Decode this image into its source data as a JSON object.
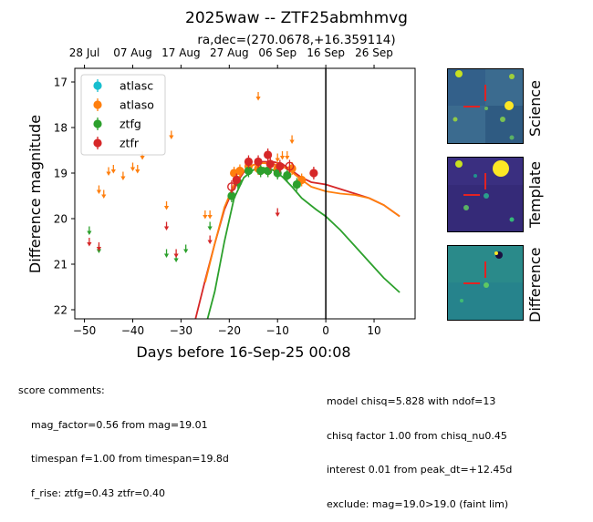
{
  "title": "2025waw -- ZTF25abmhmvg",
  "subtitle": "ra,dec=(270.0678,+16.359114)",
  "top_axis_ticks": [
    "28 Jul",
    "07 Aug",
    "17 Aug",
    "27 Aug",
    "06 Sep",
    "16 Sep",
    "26 Sep"
  ],
  "colors": {
    "atlasc": "#17becf",
    "atlaso": "#ff7f0e",
    "ztfg": "#2ca02c",
    "ztfr": "#d62728"
  },
  "chart_data": {
    "type": "scatter",
    "xlabel": "Days before 16-Sep-25 00:08",
    "ylabel": "Difference magnitude",
    "xlim": [
      -52,
      18.5
    ],
    "ylim": [
      22.2,
      16.7
    ],
    "y_inverted": true,
    "x_ticks": [
      -50,
      -40,
      -30,
      -20,
      -10,
      0,
      10
    ],
    "y_ticks": [
      17,
      18,
      19,
      20,
      21,
      22
    ],
    "top_ticks_days": [
      -50,
      -40,
      -30,
      -20,
      -10,
      0,
      10
    ],
    "vline_x": 0,
    "legend": {
      "placement": "top-left",
      "entries": [
        "atlasc",
        "atlaso",
        "ztfg",
        "ztfr"
      ]
    },
    "series": [
      {
        "name": "atlasc",
        "detections": [],
        "upper_limits": []
      },
      {
        "name": "atlaso",
        "detections": [
          [
            -19,
            19.0
          ],
          [
            -17.8,
            18.95
          ],
          [
            -16,
            18.85
          ],
          [
            -14,
            18.9
          ],
          [
            -12,
            18.95
          ],
          [
            -10,
            18.9
          ],
          [
            -7,
            18.9
          ],
          [
            -5,
            19.15
          ]
        ],
        "upper_limits": [
          [
            -47,
            19.35
          ],
          [
            -46,
            19.45
          ],
          [
            -45,
            18.95
          ],
          [
            -44,
            18.9
          ],
          [
            -42,
            19.05
          ],
          [
            -40,
            18.85
          ],
          [
            -39,
            18.9
          ],
          [
            -38,
            18.6
          ],
          [
            -32,
            18.15
          ],
          [
            -33,
            19.7
          ],
          [
            -25,
            19.9
          ],
          [
            -24,
            19.9
          ],
          [
            -14,
            17.3
          ],
          [
            -10,
            18.65
          ],
          [
            -9,
            18.6
          ],
          [
            -8,
            18.6
          ],
          [
            -7,
            18.25
          ]
        ]
      },
      {
        "name": "ztfg",
        "detections": [
          [
            -19.5,
            19.5
          ],
          [
            -18.2,
            19.2
          ],
          [
            -16,
            18.95
          ],
          [
            -13.5,
            18.95
          ],
          [
            -12,
            18.95
          ],
          [
            -10,
            19.0
          ],
          [
            -8,
            19.05
          ],
          [
            -6,
            19.25
          ]
        ],
        "upper_limits": [
          [
            -49,
            20.25
          ],
          [
            -47,
            20.65
          ],
          [
            -33,
            20.75
          ],
          [
            -31,
            20.85
          ],
          [
            -29,
            20.65
          ],
          [
            -24,
            20.15
          ]
        ]
      },
      {
        "name": "ztfr",
        "detections": [
          [
            -18.5,
            19.15
          ],
          [
            -16,
            18.75
          ],
          [
            -14,
            18.75
          ],
          [
            -12,
            18.6
          ],
          [
            -11.5,
            18.8
          ],
          [
            -9.5,
            18.85
          ],
          [
            -2.5,
            19.0
          ]
        ],
        "upper_limits": [
          [
            -49,
            20.5
          ],
          [
            -47,
            20.6
          ],
          [
            -33,
            20.15
          ],
          [
            -31,
            20.75
          ],
          [
            -24,
            20.45
          ],
          [
            -10,
            19.85
          ]
        ],
        "open_points": [
          [
            -19.5,
            19.3
          ],
          [
            -7.5,
            18.85
          ]
        ]
      }
    ],
    "model_curves": [
      {
        "name": "ztfr",
        "points": [
          [
            -27,
            22.2
          ],
          [
            -25,
            21.35
          ],
          [
            -23,
            20.55
          ],
          [
            -21,
            19.8
          ],
          [
            -19,
            19.3
          ],
          [
            -17,
            18.98
          ],
          [
            -15,
            18.82
          ],
          [
            -13,
            18.75
          ],
          [
            -11,
            18.75
          ],
          [
            -9,
            18.8
          ],
          [
            -7,
            18.95
          ],
          [
            -5,
            19.1
          ],
          [
            -3,
            19.2
          ],
          [
            0,
            19.25
          ],
          [
            3,
            19.35
          ],
          [
            6,
            19.45
          ],
          [
            9,
            19.55
          ],
          [
            12,
            19.7
          ],
          [
            15.3,
            19.95
          ]
        ]
      },
      {
        "name": "atlaso",
        "points": [
          [
            -25,
            21.4
          ],
          [
            -23,
            20.55
          ],
          [
            -21,
            19.75
          ],
          [
            -19,
            19.25
          ],
          [
            -17,
            18.95
          ],
          [
            -15,
            18.82
          ],
          [
            -13,
            18.78
          ],
          [
            -11,
            18.8
          ],
          [
            -9,
            18.85
          ],
          [
            -7,
            18.98
          ],
          [
            -5,
            19.15
          ],
          [
            -3,
            19.3
          ],
          [
            0,
            19.4
          ],
          [
            3,
            19.45
          ],
          [
            6,
            19.48
          ],
          [
            9,
            19.55
          ],
          [
            12,
            19.7
          ],
          [
            15.3,
            19.95
          ]
        ]
      },
      {
        "name": "ztfg",
        "points": [
          [
            -24.5,
            22.2
          ],
          [
            -23,
            21.6
          ],
          [
            -21,
            20.5
          ],
          [
            -19,
            19.55
          ],
          [
            -17,
            19.1
          ],
          [
            -15,
            18.93
          ],
          [
            -13,
            18.88
          ],
          [
            -11,
            18.93
          ],
          [
            -9,
            19.08
          ],
          [
            -7,
            19.3
          ],
          [
            -5,
            19.55
          ],
          [
            -2,
            19.8
          ],
          [
            0,
            19.95
          ],
          [
            3,
            20.25
          ],
          [
            6,
            20.6
          ],
          [
            9,
            20.95
          ],
          [
            12,
            21.3
          ],
          [
            15.3,
            21.62
          ]
        ]
      }
    ]
  },
  "thumbnails": {
    "science": "Science",
    "template": "Template",
    "difference": "Difference"
  },
  "score_comments": {
    "header": "score comments:",
    "lines": [
      "mag_factor=0.56 from mag=19.01",
      "timespan f=1.00 from timespan=19.8d",
      "f_rise: ztfg=0.43 ztfr=0.40"
    ]
  },
  "model_comments": {
    "lines": [
      "model chisq=5.828 with ndof=13",
      "chisq factor 1.00 from chisq_nu0.45",
      "interest 0.01 from peak_dt=+12.45d",
      "exclude: mag=19.0>19.0 (faint lim)"
    ]
  }
}
